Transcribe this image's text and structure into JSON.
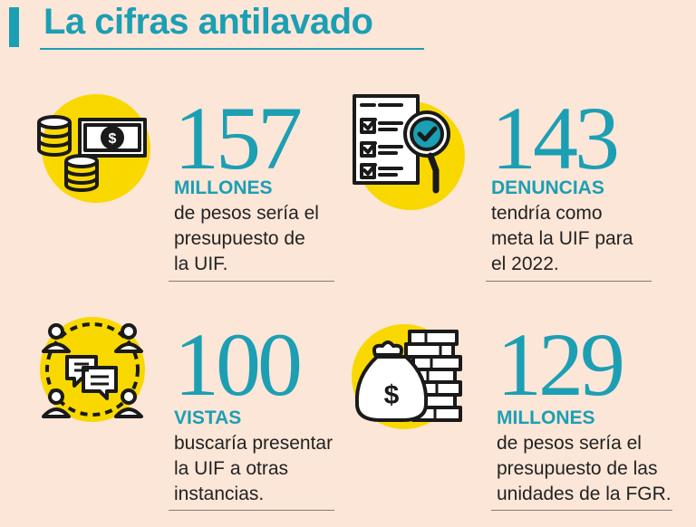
{
  "header": {
    "title": "La cifras antilavado"
  },
  "colors": {
    "accent": "#1c9fb3",
    "highlight": "#f9d800",
    "background": "#fce6d8",
    "text": "#222222"
  },
  "stats": [
    {
      "value": "157",
      "label": "MILLONES",
      "description": [
        "de pesos sería el",
        "presupuesto de",
        "la UIF."
      ],
      "icon": "money-coins-icon"
    },
    {
      "value": "143",
      "label": "DENUNCIAS",
      "description": [
        "tendría como",
        "meta la UIF para",
        "el 2022."
      ],
      "icon": "checklist-magnifier-icon"
    },
    {
      "value": "100",
      "label": "VISTAS",
      "description": [
        "buscaría presentar",
        "la UIF a otras",
        "instancias."
      ],
      "icon": "people-network-icon"
    },
    {
      "value": "129",
      "label": "MILLONES",
      "description": [
        "de pesos sería el",
        "presupuesto de las",
        "unidades de la FGR."
      ],
      "icon": "money-bag-stacks-icon"
    }
  ]
}
